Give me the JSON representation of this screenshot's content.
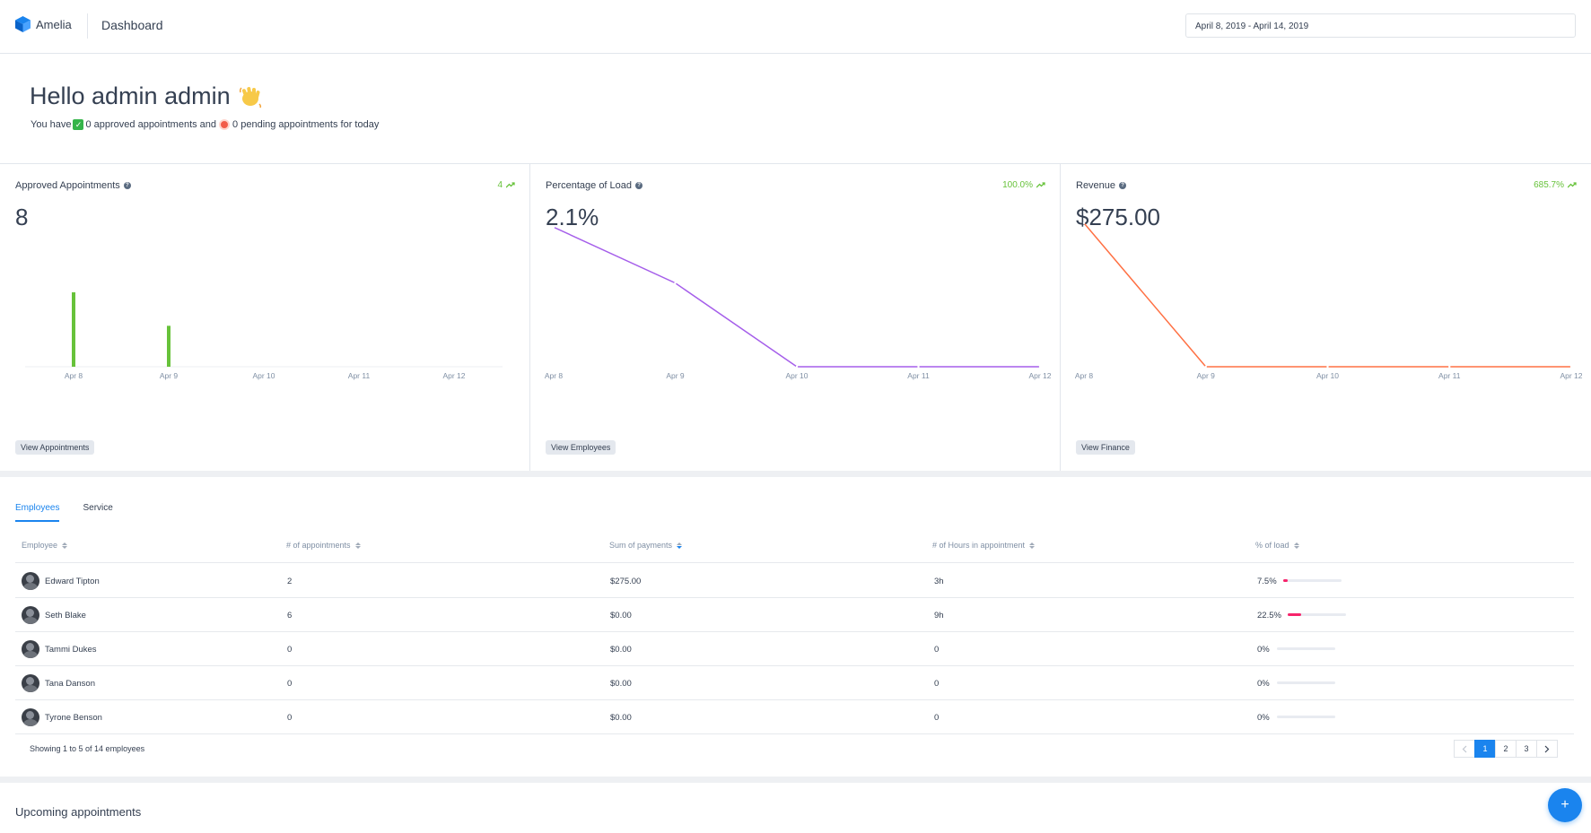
{
  "header": {
    "brand": "Amelia",
    "title": "Dashboard",
    "date_range": "April 8, 2019 - April 14, 2019"
  },
  "greeting": {
    "hello": "Hello admin admin",
    "prefix": "You have",
    "approved_text": "0 approved appointments and",
    "pending_text": "0 pending appointments for today"
  },
  "cards": {
    "appointments": {
      "title": "Approved Appointments",
      "trend": "4",
      "value": "8",
      "button": "View Appointments",
      "color": "#67c23a"
    },
    "load": {
      "title": "Percentage of Load",
      "trend": "100.0%",
      "value": "2.1%",
      "button": "View Employees",
      "color": "#a55eea"
    },
    "revenue": {
      "title": "Revenue",
      "trend": "685.7%",
      "value": "$275.00",
      "button": "View Finance",
      "color": "#ff7043"
    }
  },
  "chart_data": [
    {
      "type": "bar",
      "title": "Approved Appointments",
      "categories": [
        "Apr 8",
        "Apr 9",
        "Apr 10",
        "Apr 11",
        "Apr 12"
      ],
      "values": [
        2,
        1.1,
        0,
        0,
        0
      ],
      "ylim": [
        0,
        4
      ]
    },
    {
      "type": "line",
      "title": "Percentage of Load",
      "categories": [
        "Apr 8",
        "Apr 9",
        "Apr 10",
        "Apr 11",
        "Apr 12"
      ],
      "values": [
        7.5,
        4.5,
        0,
        0,
        0
      ],
      "ylim": [
        0,
        8
      ]
    },
    {
      "type": "line",
      "title": "Revenue",
      "categories": [
        "Apr 8",
        "Apr 9",
        "Apr 10",
        "Apr 11",
        "Apr 12"
      ],
      "values": [
        275,
        0,
        0,
        0,
        0
      ],
      "ylim": [
        0,
        285
      ]
    }
  ],
  "tabs": [
    "Employees",
    "Service"
  ],
  "table": {
    "headers": [
      "Employee",
      "# of appointments",
      "Sum of payments",
      "# of Hours in appointment",
      "% of load"
    ],
    "rows": [
      {
        "name": "Edward Tipton",
        "appointments": "2",
        "payments": "$275.00",
        "hours": "3h",
        "load": "7.5%",
        "load_fraction": 0.075
      },
      {
        "name": "Seth Blake",
        "appointments": "6",
        "payments": "$0.00",
        "hours": "9h",
        "load": "22.5%",
        "load_fraction": 0.225
      },
      {
        "name": "Tammi Dukes",
        "appointments": "0",
        "payments": "$0.00",
        "hours": "0",
        "load": "0%",
        "load_fraction": 0
      },
      {
        "name": "Tana Danson",
        "appointments": "0",
        "payments": "$0.00",
        "hours": "0",
        "load": "0%",
        "load_fraction": 0
      },
      {
        "name": "Tyrone Benson",
        "appointments": "0",
        "payments": "$0.00",
        "hours": "0",
        "load": "0%",
        "load_fraction": 0
      }
    ],
    "showing": "Showing 1 to 5 of 14 employees",
    "pages": [
      "1",
      "2",
      "3"
    ]
  },
  "upcoming": {
    "title": "Upcoming appointments"
  },
  "fab": "+"
}
